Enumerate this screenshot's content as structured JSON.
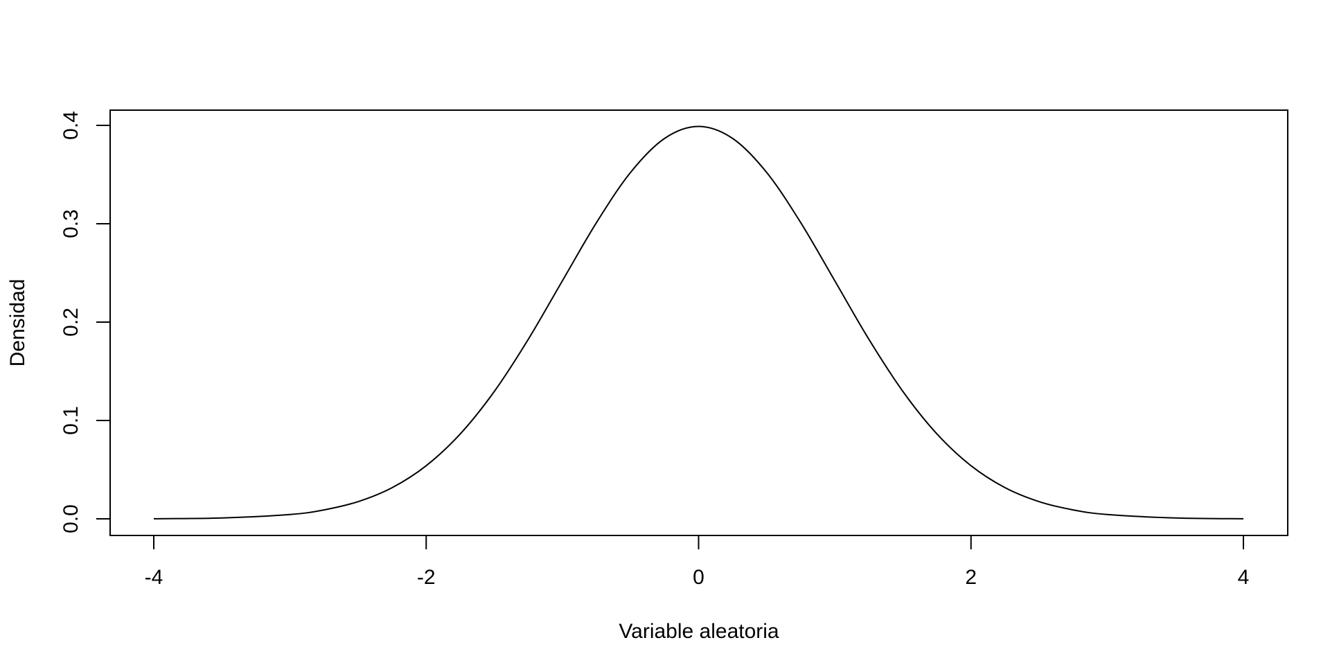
{
  "chart_data": {
    "type": "line",
    "title": "",
    "xlabel": "Variable aleatoria",
    "ylabel": "Densidad",
    "xlim": [
      -4,
      4
    ],
    "ylim": [
      0,
      0.4
    ],
    "x_ticks": [
      -4,
      -2,
      0,
      2,
      4
    ],
    "x_tick_labels": [
      "-4",
      "-2",
      "0",
      "2",
      "4"
    ],
    "y_ticks": [
      0.0,
      0.1,
      0.2,
      0.3,
      0.4
    ],
    "y_tick_labels": [
      "0.0",
      "0.1",
      "0.2",
      "0.3",
      "0.4"
    ],
    "grid": false,
    "legend": "none",
    "line_color": "#000000",
    "series": [
      {
        "x": [
          -4,
          -3.5,
          -3,
          -2.75,
          -2.5,
          -2.25,
          -2,
          -1.75,
          -1.5,
          -1.25,
          -1,
          -0.75,
          -0.5,
          -0.25,
          0,
          0.25,
          0.5,
          0.75,
          1,
          1.25,
          1.5,
          1.75,
          2,
          2.25,
          2.5,
          2.75,
          3,
          3.5,
          4
        ],
        "values": [
          0.0001,
          0.0009,
          0.0044,
          0.0091,
          0.0175,
          0.0317,
          0.054,
          0.0863,
          0.1295,
          0.1826,
          0.242,
          0.3011,
          0.3521,
          0.3867,
          0.3989,
          0.3867,
          0.3521,
          0.3011,
          0.242,
          0.1826,
          0.1295,
          0.0863,
          0.054,
          0.0317,
          0.0175,
          0.0091,
          0.0044,
          0.0009,
          0.0001
        ]
      }
    ]
  }
}
